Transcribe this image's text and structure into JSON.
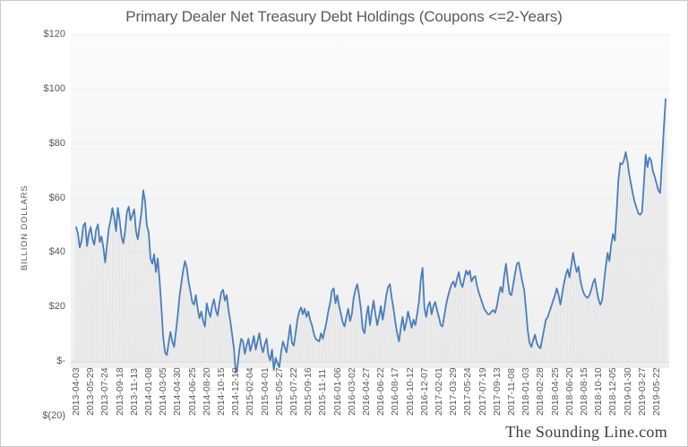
{
  "chart": {
    "title": "Primary Dealer Net Treasury Debt Holdings (Coupons <=2-Years)",
    "watermark": "The Sounding Line.com",
    "y_axis_title": "BILLION DOLLARS"
  },
  "colors": {
    "line": "#4a7ebb",
    "bar_stripe": "#e3e3e3",
    "gridline": "#ececec",
    "zero_axis": "#d4d4d4",
    "text": "#595959",
    "plot_background": "#f4f4f4"
  },
  "chart_data": {
    "type": "line",
    "title": "Primary Dealer Net Treasury Debt Holdings (Coupons <=2-Years)",
    "xlabel": "",
    "ylabel": "BILLION DOLLARS",
    "units": "billion US dollars",
    "ylim": [
      -20,
      120
    ],
    "grid": true,
    "legend_position": "none",
    "ytick_values": [
      120,
      100,
      80,
      60,
      40,
      20,
      0,
      -20
    ],
    "ytick_labels": [
      "$120",
      "$100",
      "$80",
      "$60",
      "$40",
      "$20",
      "$-",
      "$(20)"
    ],
    "x_tick_labels": [
      "2013-04-03",
      "2013-05-29",
      "2013-07-24",
      "2013-09-18",
      "2013-11-13",
      "2014-01-08",
      "2014-03-05",
      "2014-04-30",
      "2014-06-25",
      "2014-08-20",
      "2014-10-15",
      "2014-12-10",
      "2015-02-04",
      "2015-04-01",
      "2015-05-27",
      "2015-07-22",
      "2015-09-16",
      "2015-11-11",
      "2016-01-06",
      "2016-03-02",
      "2016-04-27",
      "2016-06-22",
      "2016-08-17",
      "2016-10-12",
      "2016-12-07",
      "2017-02-01",
      "2017-03-29",
      "2017-05-24",
      "2017-07-19",
      "2017-09-13",
      "2017-11-08",
      "2018-01-03",
      "2018-02-28",
      "2018-04-25",
      "2018-06-20",
      "2018-08-15",
      "2018-10-10",
      "2018-12-05",
      "2019-01-30",
      "2019-03-27",
      "2019-05-22"
    ],
    "points_per_tick": 8,
    "series": [
      {
        "name": "Primary Dealer Net Treasury Debt Holdings (Coupons <=2-Years)",
        "frequency": "weekly",
        "values": [
          49.5,
          47,
          42,
          44.5,
          50,
          51,
          42.5,
          47,
          49.5,
          45,
          43,
          48.5,
          50.5,
          44,
          46,
          42,
          36.5,
          43,
          49,
          52,
          56.5,
          53,
          48,
          56.5,
          52,
          46,
          43.5,
          48,
          55,
          57,
          52,
          54,
          56,
          48,
          45,
          50,
          55,
          63,
          59,
          50,
          47.5,
          38,
          36,
          39.5,
          33,
          38,
          30,
          20,
          9,
          3.5,
          2.5,
          7,
          11,
          7.5,
          5.5,
          11,
          17,
          24,
          29,
          33.5,
          37,
          34.5,
          29.5,
          26,
          22,
          21,
          24.5,
          19.5,
          16,
          18.5,
          15,
          13,
          21.5,
          18.5,
          16.5,
          20.5,
          23,
          19,
          17,
          21.5,
          25.5,
          26.5,
          22.5,
          24.5,
          19,
          15,
          10,
          5,
          -4,
          -1.5,
          4.5,
          8.5,
          7.5,
          3,
          6,
          8.5,
          4,
          6.5,
          9.5,
          4.5,
          7.5,
          10.5,
          6,
          3.5,
          6.5,
          8.5,
          2.5,
          0.5,
          4.5,
          -3,
          1.5,
          -0.5,
          -2,
          3.5,
          7.5,
          5.5,
          3.5,
          8.5,
          13.5,
          7,
          6,
          10.5,
          15.5,
          18.5,
          20,
          17.5,
          19.5,
          16.5,
          18.5,
          15.5,
          13.5,
          10.5,
          8.5,
          8,
          7.5,
          10.5,
          8.5,
          11.5,
          14.5,
          18.5,
          21.5,
          26,
          27,
          21.5,
          24.5,
          20.5,
          17.5,
          14.5,
          13,
          16.5,
          19.5,
          15,
          17.5,
          23.5,
          26.5,
          28.5,
          24.5,
          19.5,
          12,
          10.5,
          16.5,
          20.5,
          13.5,
          18.5,
          22.5,
          17.5,
          13.5,
          16.5,
          20.5,
          15.5,
          19.5,
          24.5,
          27.5,
          28.5,
          23.5,
          19.5,
          14.5,
          10.5,
          7.5,
          12.5,
          16.5,
          11.5,
          14.5,
          18.5,
          15.5,
          12.5,
          15.5,
          13.5,
          17.5,
          22,
          30,
          34.5,
          20,
          16.5,
          20.5,
          22,
          17.5,
          20.5,
          22,
          19,
          16.5,
          13.5,
          13,
          17,
          21,
          24,
          26.5,
          28.5,
          29.5,
          27.5,
          30.5,
          33,
          29,
          27.5,
          30.5,
          33.5,
          32,
          33.5,
          29.5,
          31,
          31.5,
          28,
          25.5,
          23.5,
          21.5,
          19.5,
          18.5,
          17.5,
          17.5,
          18.5,
          19,
          18,
          20.5,
          24.5,
          27.5,
          25.5,
          31.5,
          36,
          30,
          25,
          24.5,
          28.5,
          32.5,
          36,
          36.5,
          33,
          29.5,
          26.5,
          19.5,
          11.5,
          7,
          5.5,
          8,
          10,
          7,
          5.5,
          5,
          8.5,
          12,
          15.5,
          16.5,
          18.5,
          20.5,
          22.5,
          24.5,
          27,
          24.5,
          21,
          25,
          29,
          32,
          34,
          31,
          35.5,
          40,
          36,
          33,
          35,
          30,
          27,
          25,
          24,
          23.5,
          24.5,
          26.5,
          29,
          30.5,
          26.5,
          23,
          21,
          22.5,
          29,
          35,
          40,
          37,
          43,
          47,
          44.5,
          55,
          67,
          73,
          72.5,
          74,
          77,
          73.5,
          68.5,
          65,
          61.5,
          58.5,
          56.5,
          54.5,
          54,
          55,
          65,
          76,
          71.5,
          75,
          74,
          70,
          68,
          65.5,
          63,
          62,
          73.5,
          85.5,
          96.5
        ]
      }
    ]
  }
}
